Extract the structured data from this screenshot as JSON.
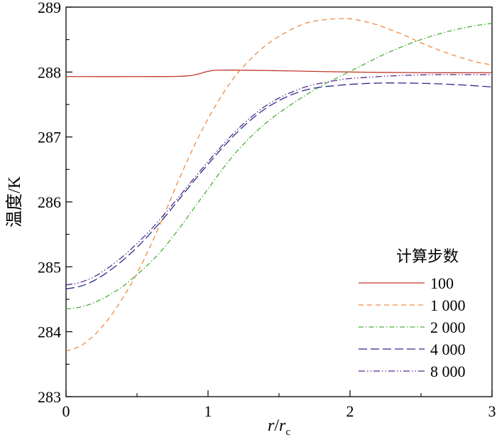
{
  "chart_data": {
    "type": "line",
    "xlabel_main": "r",
    "xlabel_sep": "/",
    "xlabel_r": "r",
    "xlabel_sub": "c",
    "ylabel": "温度/K",
    "xlim": [
      0,
      3
    ],
    "ylim": [
      283,
      289
    ],
    "x_ticks": [
      "0",
      "1",
      "2",
      "3"
    ],
    "y_ticks": [
      "283",
      "284",
      "285",
      "286",
      "287",
      "288",
      "289"
    ],
    "grid": false,
    "legend_title": "计算步数",
    "legend_position": "right",
    "series": [
      {
        "name": "100",
        "color": "#c0392b",
        "dash": "solid",
        "points": [
          [
            0,
            287.93
          ],
          [
            0.5,
            287.93
          ],
          [
            0.85,
            287.94
          ],
          [
            1.0,
            288.01
          ],
          [
            1.1,
            288.03
          ],
          [
            1.5,
            288.02
          ],
          [
            2.0,
            288.0
          ],
          [
            2.5,
            287.99
          ],
          [
            3.0,
            287.99
          ]
        ]
      },
      {
        "name": "1 000",
        "color": "#f08a40",
        "dash": "dashed",
        "points": [
          [
            0,
            283.7
          ],
          [
            0.1,
            283.78
          ],
          [
            0.2,
            283.95
          ],
          [
            0.3,
            284.2
          ],
          [
            0.4,
            284.52
          ],
          [
            0.5,
            284.9
          ],
          [
            0.6,
            285.35
          ],
          [
            0.7,
            285.85
          ],
          [
            0.8,
            286.37
          ],
          [
            0.9,
            286.85
          ],
          [
            1.0,
            287.28
          ],
          [
            1.1,
            287.65
          ],
          [
            1.2,
            287.96
          ],
          [
            1.3,
            288.2
          ],
          [
            1.4,
            288.4
          ],
          [
            1.5,
            288.55
          ],
          [
            1.6,
            288.67
          ],
          [
            1.7,
            288.76
          ],
          [
            1.8,
            288.8
          ],
          [
            1.9,
            288.82
          ],
          [
            2.0,
            288.82
          ],
          [
            2.1,
            288.78
          ],
          [
            2.2,
            288.72
          ],
          [
            2.3,
            288.64
          ],
          [
            2.4,
            288.55
          ],
          [
            2.5,
            288.45
          ],
          [
            2.6,
            288.36
          ],
          [
            2.7,
            288.28
          ],
          [
            2.8,
            288.21
          ],
          [
            2.9,
            288.15
          ],
          [
            3.0,
            288.11
          ]
        ]
      },
      {
        "name": "2 000",
        "color": "#4caf3a",
        "dash": "dashdot",
        "points": [
          [
            0,
            284.35
          ],
          [
            0.1,
            284.38
          ],
          [
            0.2,
            284.45
          ],
          [
            0.3,
            284.56
          ],
          [
            0.4,
            284.7
          ],
          [
            0.5,
            284.88
          ],
          [
            0.6,
            285.08
          ],
          [
            0.7,
            285.32
          ],
          [
            0.8,
            285.6
          ],
          [
            0.9,
            285.9
          ],
          [
            1.0,
            286.2
          ],
          [
            1.1,
            286.5
          ],
          [
            1.2,
            286.77
          ],
          [
            1.3,
            287.0
          ],
          [
            1.4,
            287.2
          ],
          [
            1.5,
            287.37
          ],
          [
            1.6,
            287.52
          ],
          [
            1.7,
            287.66
          ],
          [
            1.8,
            287.79
          ],
          [
            1.9,
            287.9
          ],
          [
            2.0,
            288.01
          ],
          [
            2.1,
            288.12
          ],
          [
            2.2,
            288.23
          ],
          [
            2.3,
            288.33
          ],
          [
            2.4,
            288.42
          ],
          [
            2.5,
            288.5
          ],
          [
            2.6,
            288.57
          ],
          [
            2.7,
            288.63
          ],
          [
            2.8,
            288.68
          ],
          [
            2.9,
            288.72
          ],
          [
            3.0,
            288.75
          ]
        ]
      },
      {
        "name": "4 000",
        "color": "#2c2c8c",
        "dash": "longdash",
        "points": [
          [
            0,
            284.66
          ],
          [
            0.1,
            284.7
          ],
          [
            0.2,
            284.79
          ],
          [
            0.3,
            284.93
          ],
          [
            0.4,
            285.1
          ],
          [
            0.5,
            285.3
          ],
          [
            0.6,
            285.53
          ],
          [
            0.7,
            285.78
          ],
          [
            0.8,
            286.05
          ],
          [
            0.9,
            286.32
          ],
          [
            1.0,
            286.58
          ],
          [
            1.1,
            286.83
          ],
          [
            1.2,
            287.06
          ],
          [
            1.3,
            287.26
          ],
          [
            1.4,
            287.43
          ],
          [
            1.5,
            287.56
          ],
          [
            1.6,
            287.66
          ],
          [
            1.7,
            287.73
          ],
          [
            1.8,
            287.77
          ],
          [
            1.9,
            287.79
          ],
          [
            2.0,
            287.81
          ],
          [
            2.2,
            287.83
          ],
          [
            2.4,
            287.83
          ],
          [
            2.6,
            287.82
          ],
          [
            2.8,
            287.8
          ],
          [
            3.0,
            287.77
          ]
        ]
      },
      {
        "name": "8 000",
        "color": "#5a2a8a",
        "dash": "dashdotdot",
        "points": [
          [
            0,
            284.72
          ],
          [
            0.1,
            284.76
          ],
          [
            0.2,
            284.85
          ],
          [
            0.3,
            284.99
          ],
          [
            0.4,
            285.16
          ],
          [
            0.5,
            285.36
          ],
          [
            0.6,
            285.58
          ],
          [
            0.7,
            285.83
          ],
          [
            0.8,
            286.09
          ],
          [
            0.9,
            286.36
          ],
          [
            1.0,
            286.62
          ],
          [
            1.1,
            286.87
          ],
          [
            1.2,
            287.1
          ],
          [
            1.3,
            287.3
          ],
          [
            1.4,
            287.47
          ],
          [
            1.5,
            287.6
          ],
          [
            1.6,
            287.7
          ],
          [
            1.7,
            287.78
          ],
          [
            1.8,
            287.83
          ],
          [
            1.9,
            287.87
          ],
          [
            2.0,
            287.9
          ],
          [
            2.2,
            287.93
          ],
          [
            2.4,
            287.95
          ],
          [
            2.6,
            287.96
          ],
          [
            2.8,
            287.96
          ],
          [
            3.0,
            287.96
          ]
        ]
      }
    ]
  }
}
